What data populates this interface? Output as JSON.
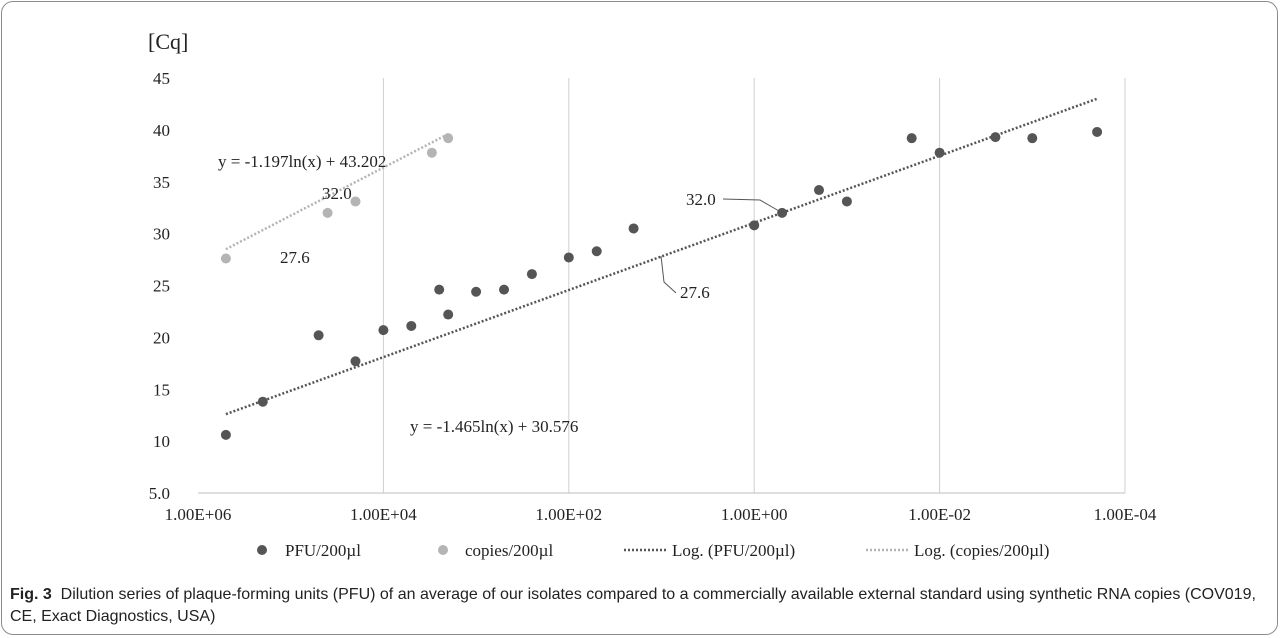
{
  "chart_data": {
    "type": "scatter",
    "ylabel": "[Cq]",
    "x_scale": "log-reversed",
    "xlim": [
      1000000,
      0.0001
    ],
    "ylim": [
      5,
      45
    ],
    "grid": "vertical",
    "x_ticks": [
      {
        "value": 1000000,
        "label": "1.00E+06"
      },
      {
        "value": 10000,
        "label": "1.00E+04"
      },
      {
        "value": 100,
        "label": "1.00E+02"
      },
      {
        "value": 1,
        "label": "1.00E+00"
      },
      {
        "value": 0.01,
        "label": "1.00E-02"
      },
      {
        "value": 0.0001,
        "label": "1.00E-04"
      }
    ],
    "y_ticks": [
      {
        "value": 5,
        "label": "5.0"
      },
      {
        "value": 10,
        "label": "10"
      },
      {
        "value": 15,
        "label": "15"
      },
      {
        "value": 20,
        "label": "20"
      },
      {
        "value": 25,
        "label": "25"
      },
      {
        "value": 30,
        "label": "30"
      },
      {
        "value": 35,
        "label": "35"
      },
      {
        "value": 40,
        "label": "40"
      },
      {
        "value": 45,
        "label": "45"
      }
    ],
    "series": [
      {
        "name": "PFU/200µl",
        "color": "#555555",
        "points": [
          [
            500000,
            10.6
          ],
          [
            200000,
            13.8
          ],
          [
            50000,
            20.2
          ],
          [
            20000,
            17.7
          ],
          [
            10000,
            20.7
          ],
          [
            5000,
            21.1
          ],
          [
            2500,
            24.6
          ],
          [
            2000,
            22.2
          ],
          [
            1000,
            24.4
          ],
          [
            500,
            24.6
          ],
          [
            250,
            26.1
          ],
          [
            100,
            27.7
          ],
          [
            50,
            28.3
          ],
          [
            20,
            30.5
          ],
          [
            1,
            30.8
          ],
          [
            0.5,
            32.0
          ],
          [
            0.2,
            34.2
          ],
          [
            0.1,
            33.1
          ],
          [
            0.02,
            39.2
          ],
          [
            0.01,
            37.8
          ],
          [
            0.0025,
            39.3
          ],
          [
            0.001,
            39.2
          ],
          [
            0.0002,
            39.8
          ]
        ]
      },
      {
        "name": "copies/200µl",
        "color": "#b4b4b4",
        "points": [
          [
            500000,
            27.6
          ],
          [
            40000,
            32.0
          ],
          [
            20000,
            33.1
          ],
          [
            3000,
            37.8
          ],
          [
            2000,
            39.2
          ]
        ]
      }
    ],
    "trendlines": [
      {
        "name": "Log. (PFU/200µl)",
        "color": "#555555",
        "type": "log",
        "x_from": 500000,
        "x_to": 0.0002,
        "y_from": 12.6,
        "y_to": 43.0
      },
      {
        "name": "Log. (copies/200µl)",
        "color": "#b4b4b4",
        "type": "log",
        "x_from": 500000,
        "x_to": 2000,
        "y_from": 28.5,
        "y_to": 39.6
      }
    ],
    "annotations": {
      "eq_copies": "y = -1.197ln(x) + 43.202",
      "eq_pfu": "y = -1.465ln(x) + 30.576",
      "lbl_copies_high": "32.0",
      "lbl_copies_low": "27.6",
      "lbl_pfu_high": "32.0",
      "lbl_pfu_low": "27.6"
    },
    "legend_position": "bottom"
  },
  "caption": {
    "label": "Fig. 3",
    "text": "Dilution series of plaque-forming units (PFU) of an average of our isolates compared to a commercially available external standard using synthetic RNA copies (COV019, CE, Exact Diagnostics, USA)"
  }
}
